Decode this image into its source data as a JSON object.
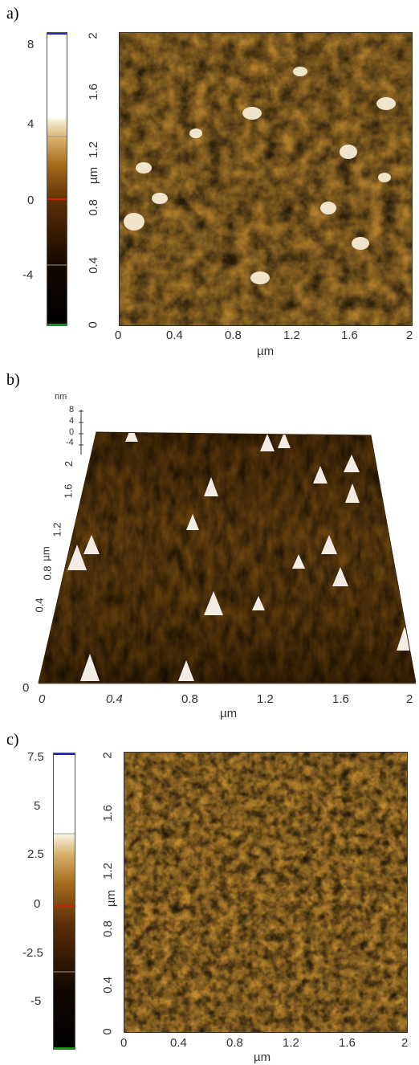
{
  "panels": {
    "a": {
      "letter": "a)",
      "colorbar_ticks": [
        "8",
        "4",
        "0",
        "-4"
      ],
      "y_ticks": [
        "2",
        "1.6",
        "1.2",
        "0.8",
        "0.4",
        "0"
      ],
      "x_ticks": [
        "0",
        "0.4",
        "0.8",
        "1.2",
        "1.6",
        "2"
      ],
      "y_label": "µm",
      "x_label": "µm"
    },
    "b": {
      "letter": "b)",
      "z_unit": "nm",
      "z_ticks": [
        "8",
        "4",
        "0",
        "-4"
      ],
      "y_ticks": [
        "2",
        "1.6",
        "1.2",
        "0.8",
        "0.4",
        "0"
      ],
      "x_ticks": [
        "0",
        "0.4",
        "0.8",
        "1.2",
        "1.6",
        "2"
      ],
      "y_label": "µm",
      "x_label": "µm"
    },
    "c": {
      "letter": "c)",
      "colorbar_ticks": [
        "7.5",
        "5",
        "2.5",
        "0",
        "-2.5",
        "-5"
      ],
      "y_ticks": [
        "2",
        "1.6",
        "1.2",
        "0.8",
        "0.4",
        "0"
      ],
      "x_ticks": [
        "0",
        "0.4",
        "0.8",
        "1.2",
        "1.6",
        "2"
      ],
      "y_label": "µm",
      "x_label": "µm"
    }
  },
  "colors": {
    "afm_dark": "#1e0f03",
    "afm_brown": "#7a4a10",
    "afm_gold": "#c08a30",
    "afm_light": "#f3e6c8",
    "colorbar_top_marker": "#2222cc",
    "colorbar_zero_marker": "#cc2200",
    "colorbar_bottom_marker": "#119911"
  }
}
